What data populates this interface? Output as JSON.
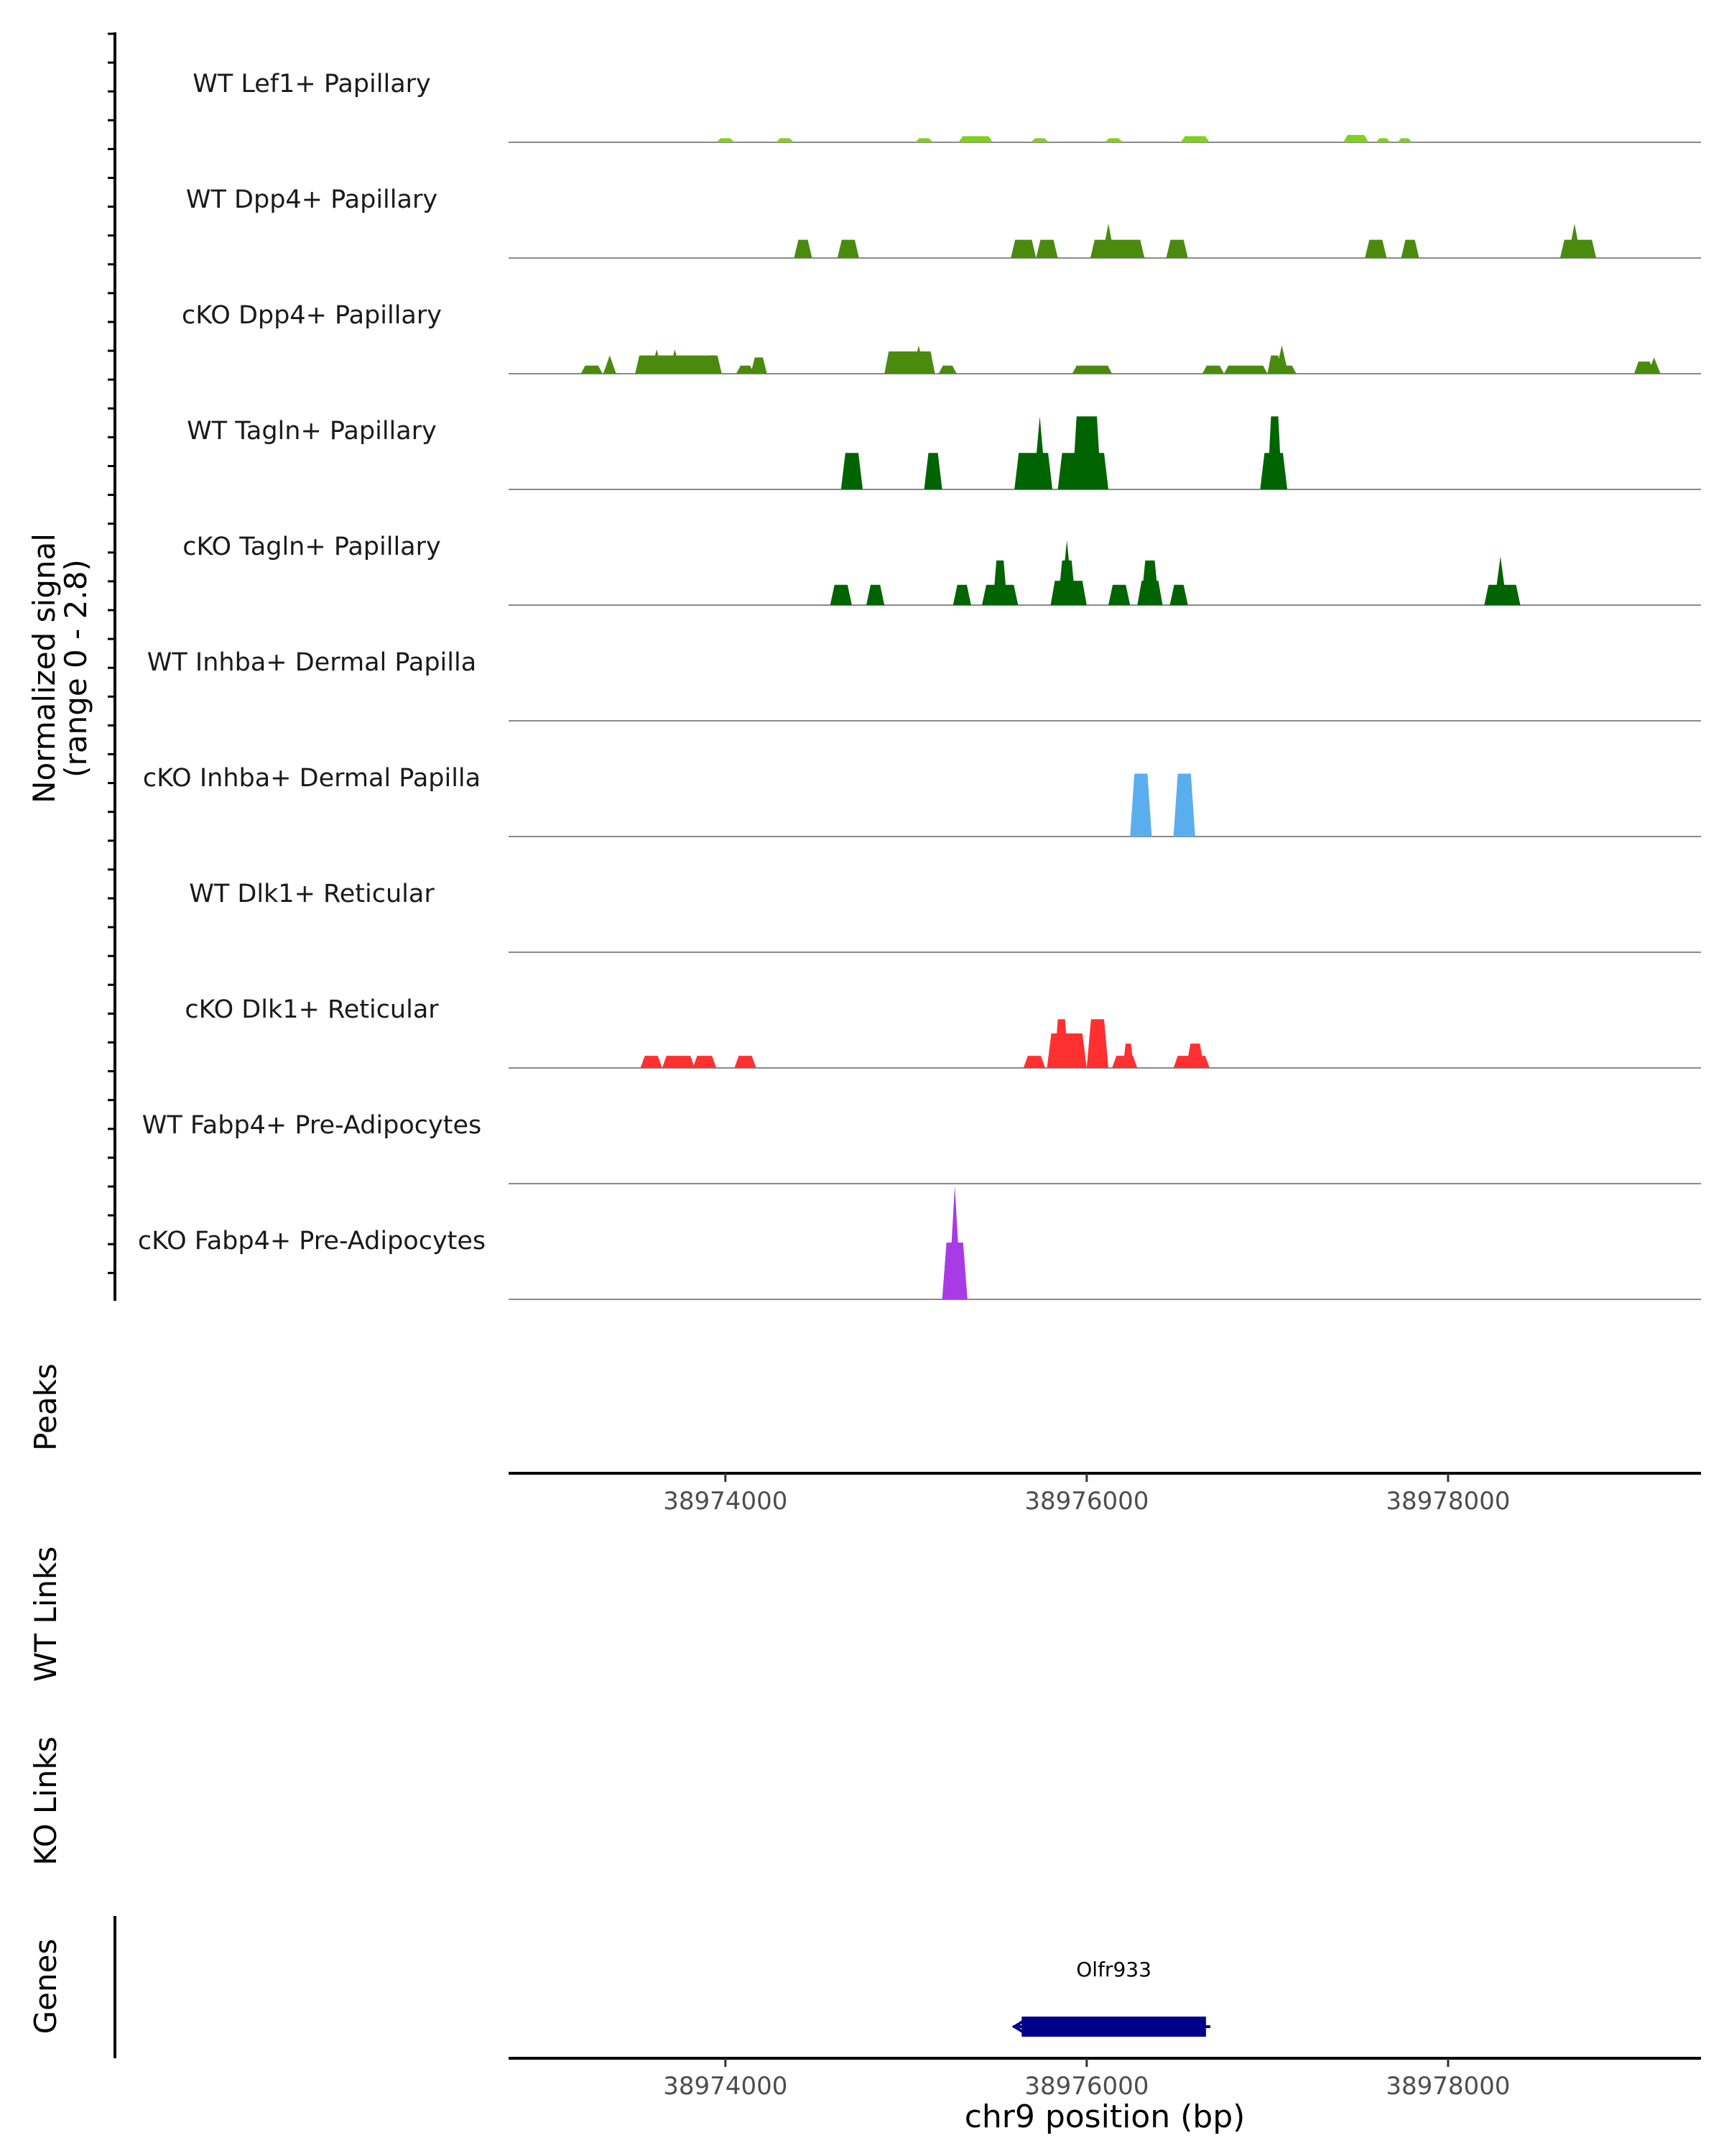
{
  "chart_data": {
    "type": "area",
    "title": "",
    "region": "chr9",
    "xlabel": "chr9 position (bp)",
    "xlim": [
      38972800,
      38979400
    ],
    "x_ticks": [
      38974000,
      38976000,
      38978000
    ],
    "x_tick_labels": [
      "38974000",
      "38976000",
      "38978000"
    ],
    "ylabel_line1": "Normalized signal",
    "ylabel_line2": "(range 0 - 2.8)",
    "ylim": [
      0,
      2.8
    ],
    "track_labels": {
      "peaks": "Peaks",
      "wt_links": "WT Links",
      "ko_links": "KO Links",
      "genes": "Genes"
    },
    "series": [
      {
        "name": "WT Lef1+ Papillary",
        "color": "#7fd11b",
        "intervals": [
          [
            38973950,
            38974050,
            0.1
          ],
          [
            38974280,
            38974380,
            0.1
          ],
          [
            38975050,
            38975150,
            0.1
          ],
          [
            38975290,
            38975480,
            0.15
          ],
          [
            38975690,
            38975790,
            0.1
          ],
          [
            38976100,
            38976200,
            0.1
          ],
          [
            38976520,
            38976680,
            0.15
          ],
          [
            38977420,
            38977560,
            0.18
          ],
          [
            38977600,
            38977680,
            0.1
          ],
          [
            38977720,
            38977800,
            0.1
          ]
        ]
      },
      {
        "name": "WT Dpp4+ Papillary",
        "color": "#4a8b0e",
        "intervals": [
          [
            38974380,
            38974480,
            0.45
          ],
          [
            38974620,
            38974740,
            0.45
          ],
          [
            38975580,
            38975720,
            0.45
          ],
          [
            38975720,
            38975840,
            0.45
          ],
          [
            38976020,
            38976320,
            0.45
          ],
          [
            38976440,
            38976560,
            0.45
          ],
          [
            38977540,
            38977660,
            0.45
          ],
          [
            38977740,
            38977840,
            0.45
          ],
          [
            38978620,
            38978820,
            0.45
          ]
        ],
        "spikes": [
          [
            38976120,
            0.85
          ],
          [
            38978700,
            0.85
          ]
        ]
      },
      {
        "name": "cKO Dpp4+ Papillary",
        "color": "#4a8b0e",
        "intervals": [
          [
            38973200,
            38973320,
            0.2
          ],
          [
            38973500,
            38973960,
            0.45
          ],
          [
            38973880,
            38973980,
            0.45
          ],
          [
            38974060,
            38974160,
            0.2
          ],
          [
            38974140,
            38974230,
            0.4
          ],
          [
            38974880,
            38975160,
            0.55
          ],
          [
            38975180,
            38975280,
            0.2
          ],
          [
            38975920,
            38976140,
            0.2
          ],
          [
            38976640,
            38976760,
            0.2
          ],
          [
            38976760,
            38977000,
            0.2
          ],
          [
            38977000,
            38977080,
            0.45
          ],
          [
            38977060,
            38977160,
            0.2
          ],
          [
            38979030,
            38979140,
            0.3
          ]
        ],
        "spikes": [
          [
            38973360,
            0.45
          ],
          [
            38973620,
            0.6
          ],
          [
            38973720,
            0.6
          ],
          [
            38975070,
            0.7
          ],
          [
            38977080,
            0.7
          ],
          [
            38979140,
            0.4
          ]
        ]
      },
      {
        "name": "WT Tagln+ Papillary",
        "color": "#006400",
        "intervals": [
          [
            38974640,
            38974760,
            0.9
          ],
          [
            38975100,
            38975200,
            0.9
          ],
          [
            38975600,
            38975810,
            0.9
          ],
          [
            38975840,
            38976120,
            0.9
          ],
          [
            38975920,
            38976080,
            1.8
          ],
          [
            38977000,
            38977080,
            1.8
          ],
          [
            38976960,
            38977110,
            0.9
          ]
        ],
        "spikes": [
          [
            38975740,
            1.8
          ]
        ]
      },
      {
        "name": "cKO Tagln+ Papillary",
        "color": "#006400",
        "intervals": [
          [
            38974580,
            38974700,
            0.5
          ],
          [
            38974780,
            38974880,
            0.5
          ],
          [
            38975260,
            38975360,
            0.5
          ],
          [
            38975420,
            38975620,
            0.5
          ],
          [
            38975480,
            38975560,
            1.1
          ],
          [
            38975800,
            38976000,
            0.6
          ],
          [
            38975840,
            38975940,
            1.1
          ],
          [
            38976120,
            38976240,
            0.5
          ],
          [
            38976280,
            38976420,
            0.6
          ],
          [
            38976300,
            38976400,
            1.1
          ],
          [
            38976460,
            38976560,
            0.5
          ],
          [
            38978200,
            38978400,
            0.5
          ]
        ],
        "spikes": [
          [
            38975890,
            1.6
          ],
          [
            38978290,
            1.2
          ]
        ]
      },
      {
        "name": "WT Inhba+ Dermal Papilla",
        "color": "#5aaeee",
        "intervals": []
      },
      {
        "name": "cKO Inhba+ Dermal Papilla",
        "color": "#5aaeee",
        "intervals": [
          [
            38976240,
            38976360,
            1.55
          ],
          [
            38976480,
            38976600,
            1.55
          ]
        ]
      },
      {
        "name": "WT Dlk1+ Reticular",
        "color": "#ff3030",
        "intervals": []
      },
      {
        "name": "cKO Dlk1+ Reticular",
        "color": "#ff3030",
        "intervals": [
          [
            38973530,
            38973650,
            0.3
          ],
          [
            38973650,
            38973830,
            0.3
          ],
          [
            38973820,
            38973950,
            0.3
          ],
          [
            38974050,
            38974170,
            0.3
          ],
          [
            38975650,
            38975770,
            0.3
          ],
          [
            38975780,
            38976000,
            0.85
          ],
          [
            38975820,
            38975900,
            1.2
          ],
          [
            38976000,
            38976120,
            1.2
          ],
          [
            38976140,
            38976280,
            0.3
          ],
          [
            38976200,
            38976260,
            0.6
          ],
          [
            38976480,
            38976680,
            0.3
          ],
          [
            38976550,
            38976650,
            0.6
          ]
        ]
      },
      {
        "name": "WT Fabp4+ Pre-Adipocytes",
        "color": "#a83be5",
        "intervals": []
      },
      {
        "name": "cKO Fabp4+ Pre-Adipocytes",
        "color": "#a83be5",
        "intervals": [
          [
            38975200,
            38975340,
            1.4
          ]
        ],
        "spikes": [
          [
            38975270,
            2.8
          ]
        ]
      }
    ],
    "genes": [
      {
        "name": "Olfr933",
        "start": 38975640,
        "end": 38976660,
        "strand": "-",
        "color": "#00008b"
      }
    ]
  }
}
